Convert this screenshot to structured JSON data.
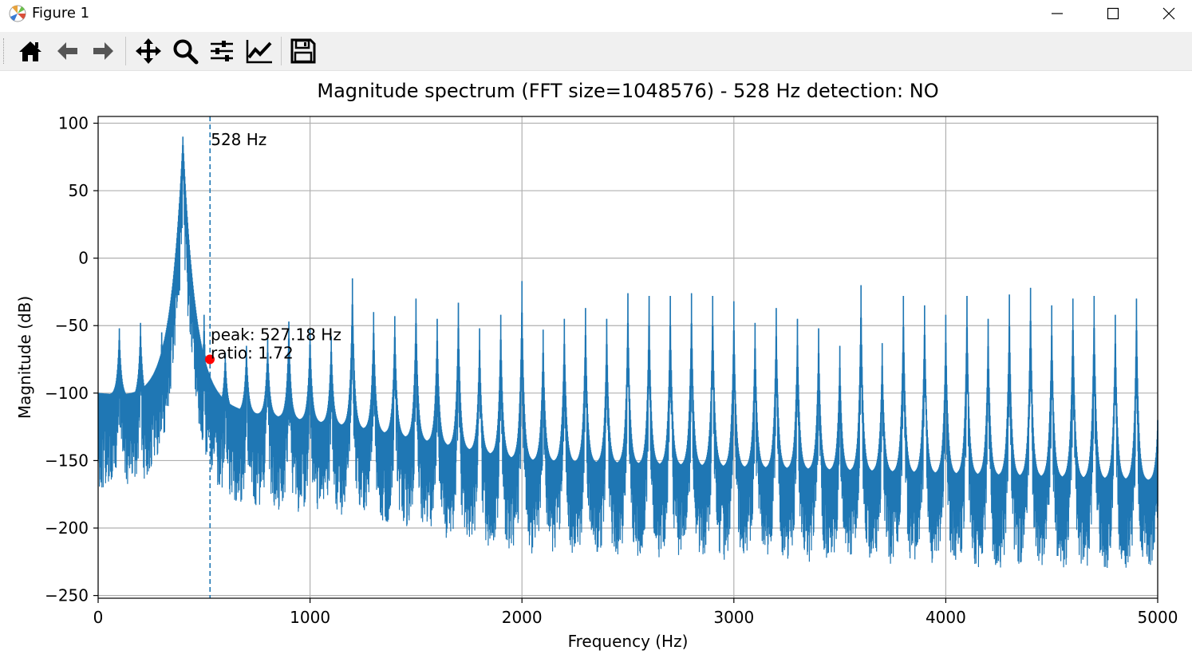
{
  "window": {
    "title": "Figure 1",
    "minimize_icon": "minimize-icon",
    "maximize_icon": "maximize-icon",
    "close_icon": "close-icon"
  },
  "toolbar": {
    "buttons": [
      {
        "name": "home-button",
        "icon": "home-icon"
      },
      {
        "name": "back-button",
        "icon": "arrow-left-icon"
      },
      {
        "name": "forward-button",
        "icon": "arrow-right-icon"
      },
      {
        "name": "pan-button",
        "icon": "move-icon"
      },
      {
        "name": "zoom-button",
        "icon": "magnifier-icon"
      },
      {
        "name": "subplots-button",
        "icon": "sliders-icon"
      },
      {
        "name": "edit-axes-button",
        "icon": "line-chart-icon"
      },
      {
        "name": "save-button",
        "icon": "floppy-disk-icon"
      }
    ]
  },
  "colors": {
    "line": "#1f77b4",
    "marker": "#ff0000",
    "grid": "#b0b0b0",
    "accent": "#1f77b4"
  },
  "chart_data": {
    "type": "line",
    "title": "Magnitude spectrum (FFT size=1048576) - 528 Hz detection: NO",
    "xlabel": "Frequency (Hz)",
    "ylabel": "Magnitude (dB)",
    "xlim": [
      0,
      5000
    ],
    "ylim": [
      -252,
      105
    ],
    "xticks": [
      0,
      1000,
      2000,
      3000,
      4000,
      5000
    ],
    "xtick_labels": [
      "0",
      "1000",
      "2000",
      "3000",
      "4000",
      "5000"
    ],
    "yticks": [
      100,
      50,
      0,
      -50,
      -100,
      -150,
      -200,
      -250
    ],
    "ytick_labels": [
      "100",
      "50",
      "0",
      "−50",
      "−100",
      "−150",
      "−200",
      "−250"
    ],
    "grid": true,
    "main_peak": {
      "x": 400,
      "y": 90
    },
    "harmonics": [
      {
        "x": 100,
        "y": -52
      },
      {
        "x": 200,
        "y": -48
      },
      {
        "x": 300,
        "y": -55
      },
      {
        "x": 500,
        "y": -42
      },
      {
        "x": 600,
        "y": -70
      },
      {
        "x": 700,
        "y": -65
      },
      {
        "x": 800,
        "y": -60
      },
      {
        "x": 900,
        "y": -47
      },
      {
        "x": 1000,
        "y": -52
      },
      {
        "x": 1100,
        "y": -58
      },
      {
        "x": 1200,
        "y": -15
      },
      {
        "x": 1300,
        "y": -40
      },
      {
        "x": 1400,
        "y": -43
      },
      {
        "x": 1500,
        "y": -30
      },
      {
        "x": 1600,
        "y": -45
      },
      {
        "x": 1700,
        "y": -33
      },
      {
        "x": 1800,
        "y": -52
      },
      {
        "x": 1900,
        "y": -42
      },
      {
        "x": 2000,
        "y": -17
      },
      {
        "x": 2100,
        "y": -53
      },
      {
        "x": 2200,
        "y": -45
      },
      {
        "x": 2300,
        "y": -37
      },
      {
        "x": 2400,
        "y": -45
      },
      {
        "x": 2500,
        "y": -26
      },
      {
        "x": 2600,
        "y": -28
      },
      {
        "x": 2700,
        "y": -28
      },
      {
        "x": 2800,
        "y": -26
      },
      {
        "x": 2900,
        "y": -28
      },
      {
        "x": 3000,
        "y": -32
      },
      {
        "x": 3100,
        "y": -48
      },
      {
        "x": 3200,
        "y": -37
      },
      {
        "x": 3300,
        "y": -45
      },
      {
        "x": 3400,
        "y": -52
      },
      {
        "x": 3500,
        "y": -65
      },
      {
        "x": 3600,
        "y": -20
      },
      {
        "x": 3700,
        "y": -63
      },
      {
        "x": 3800,
        "y": -28
      },
      {
        "x": 3900,
        "y": -35
      },
      {
        "x": 4000,
        "y": -42
      },
      {
        "x": 4100,
        "y": -28
      },
      {
        "x": 4200,
        "y": -45
      },
      {
        "x": 4300,
        "y": -27
      },
      {
        "x": 4400,
        "y": -22
      },
      {
        "x": 4500,
        "y": -35
      },
      {
        "x": 4600,
        "y": -30
      },
      {
        "x": 4700,
        "y": -28
      },
      {
        "x": 4800,
        "y": -42
      },
      {
        "x": 4900,
        "y": -30
      },
      {
        "x": 5000,
        "y": -120
      }
    ],
    "noise_floor": {
      "at_0": -100,
      "at_1200": -125,
      "at_2000": -150,
      "at_5000": -165
    },
    "marker_line": {
      "x": 528,
      "label": "528 Hz"
    },
    "detected_peak": {
      "x": 527.18,
      "y": -75,
      "label_line1": "peak: 527.18 Hz",
      "label_line2": "ratio: 1.72"
    }
  }
}
